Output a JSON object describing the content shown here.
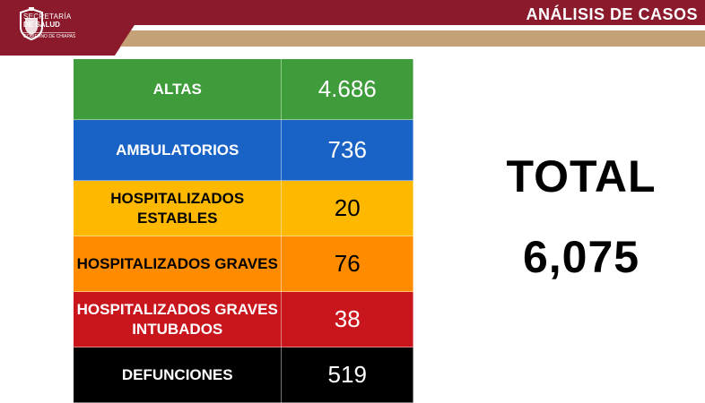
{
  "header": {
    "logo": {
      "line1": "SECRETARÍA",
      "line2": "DE SALUD",
      "line3": "GOBIERNO DE CHIAPAS"
    },
    "title": "ANÁLISIS DE CASOS",
    "colors": {
      "maroon": "#8b1a2c",
      "tan": "#c4a176"
    }
  },
  "table": {
    "rows": [
      {
        "label": "ALTAS",
        "value": "4.686",
        "bg": "#3f9c3a",
        "label_color": "#ffffff",
        "value_color": "#ffffff"
      },
      {
        "label": "AMBULATORIOS",
        "value": "736",
        "bg": "#1a63c6",
        "label_color": "#ffffff",
        "value_color": "#ffffff"
      },
      {
        "label": "HOSPITALIZADOS ESTABLES",
        "value": "20",
        "bg": "#ffb800",
        "label_color": "#000000",
        "value_color": "#000000"
      },
      {
        "label": "HOSPITALIZADOS GRAVES",
        "value": "76",
        "bg": "#ff8c00",
        "label_color": "#000000",
        "value_color": "#000000"
      },
      {
        "label": "HOSPITALIZADOS GRAVES INTUBADOS",
        "value": "38",
        "bg": "#c8161c",
        "label_color": "#ffffff",
        "value_color": "#ffffff"
      },
      {
        "label": "DEFUNCIONES",
        "value": "519",
        "bg": "#000000",
        "label_color": "#ffffff",
        "value_color": "#ffffff"
      }
    ]
  },
  "total": {
    "label": "TOTAL",
    "value": "6,075"
  }
}
